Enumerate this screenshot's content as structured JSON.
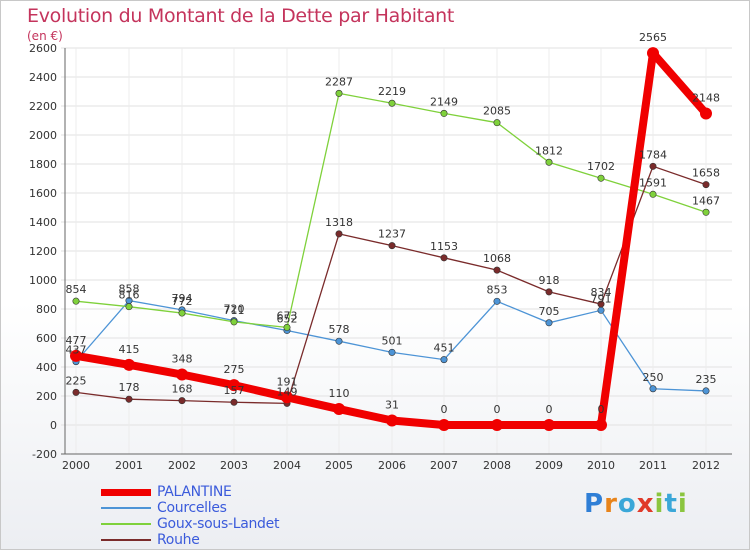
{
  "chart_data": {
    "type": "line",
    "title": "Evolution du Montant de la Dette par Habitant",
    "subtitle": "(en €)",
    "xlabel": "",
    "ylabel": "",
    "x": [
      "2000",
      "2001",
      "2002",
      "2003",
      "2004",
      "2005",
      "2006",
      "2007",
      "2008",
      "2009",
      "2010",
      "2011",
      "2012"
    ],
    "ylim": [
      -200,
      2600
    ],
    "yticks": [
      -200,
      0,
      200,
      400,
      600,
      800,
      1000,
      1200,
      1400,
      1600,
      1800,
      2000,
      2200,
      2400,
      2600
    ],
    "grid": true,
    "legend_position": "bottom-left",
    "series": [
      {
        "name": "Courcelles",
        "color": "#4d94d6",
        "emphasis": false,
        "values": [
          437,
          858,
          794,
          720,
          652,
          578,
          501,
          451,
          853,
          705,
          791,
          250,
          235
        ],
        "labels": [
          "437",
          "858",
          "794",
          "720",
          "652",
          "578",
          "501",
          "451",
          "853",
          "705",
          "791",
          "250",
          "235"
        ]
      },
      {
        "name": "Goux-sous-Landet",
        "color": "#7fd13b",
        "emphasis": false,
        "values": [
          854,
          816,
          772,
          711,
          673,
          2287,
          2219,
          2149,
          2085,
          1812,
          1702,
          1591,
          1467
        ],
        "labels": [
          "854",
          "816",
          "772",
          "711",
          "673",
          "2287",
          "2219",
          "2149",
          "2085",
          "1812",
          "1702",
          "1591",
          "1467"
        ]
      },
      {
        "name": "Rouhe",
        "color": "#7a2b2b",
        "emphasis": false,
        "values": [
          225,
          178,
          168,
          157,
          149,
          1318,
          1237,
          1153,
          1068,
          918,
          834,
          1784,
          1658
        ],
        "labels": [
          "225",
          "178",
          "168",
          "157",
          "149",
          "1318",
          "1237",
          "1153",
          "1068",
          "918",
          "834",
          "1784",
          "1658"
        ]
      },
      {
        "name": "PALANTINE",
        "color": "#f00000",
        "emphasis": true,
        "values": [
          477,
          415,
          348,
          275,
          191,
          110,
          31,
          0,
          0,
          0,
          0,
          2565,
          2148
        ],
        "labels": [
          "477",
          "415",
          "348",
          "275",
          "191",
          "110",
          "31",
          "0",
          "0",
          "0",
          "0",
          "2565",
          "2148"
        ]
      }
    ]
  },
  "legend": {
    "items": [
      {
        "label": "PALANTINE",
        "color": "#f00000",
        "thick": true
      },
      {
        "label": "Courcelles",
        "color": "#4d94d6",
        "thick": false
      },
      {
        "label": "Goux-sous-Landet",
        "color": "#7fd13b",
        "thick": false
      },
      {
        "label": "Rouhe",
        "color": "#7a2b2b",
        "thick": false
      }
    ]
  },
  "logo": {
    "letters": [
      "P",
      "r",
      "o",
      "x",
      "i",
      "t",
      "i"
    ],
    "colors": [
      "#2f7fd6",
      "#e8841a",
      "#3aa7d8",
      "#e03a2a",
      "#8bc53f",
      "#3aa7d8",
      "#8bc53f"
    ]
  }
}
